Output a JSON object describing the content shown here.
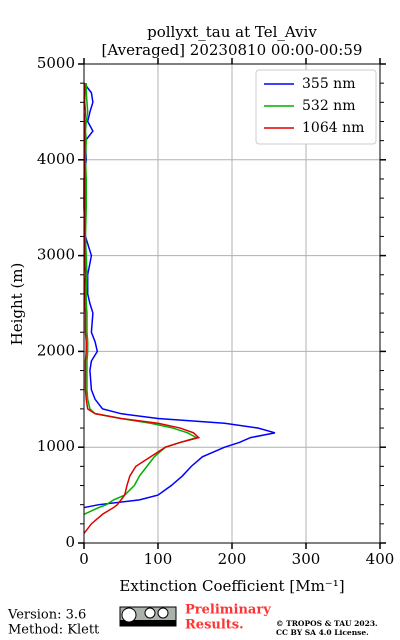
{
  "chart_data": {
    "type": "line",
    "title": "pollyxt_tau at Tel_Aviv",
    "subtitle": "[Averaged] 20230810 00:00-00:59",
    "x_label": "Extinction Coefficient [Mm⁻¹]",
    "y_label": "Height (m)",
    "xlim": [
      0,
      400
    ],
    "xticks": [
      0,
      100,
      200,
      300,
      400
    ],
    "ylim": [
      0,
      5000
    ],
    "yticks": [
      0,
      1000,
      2000,
      3000,
      4000,
      5000
    ],
    "yminorticks": [
      200,
      400,
      600,
      800,
      1200,
      1400,
      1600,
      1800,
      2200,
      2400,
      2600,
      2800,
      3200,
      3400,
      3600,
      3800,
      4200,
      4400,
      4600,
      4800
    ],
    "grid": true,
    "legend": "upper right",
    "y": [
      4800,
      4700,
      4600,
      4500,
      4400,
      4300,
      4200,
      4000,
      3800,
      3500,
      3200,
      3000,
      2800,
      2600,
      2500,
      2400,
      2200,
      2100,
      2000,
      1900,
      1800,
      1600,
      1500,
      1400,
      1350,
      1300,
      1250,
      1200,
      1150,
      1100,
      1050,
      1000,
      900,
      800,
      700,
      600,
      500,
      450,
      400,
      370,
      300,
      200,
      100
    ],
    "series": [
      {
        "name": "355 nm",
        "color": "#0000ff",
        "values": [
          0,
          10,
          12,
          8,
          5,
          12,
          2,
          3,
          0,
          0,
          2,
          10,
          5,
          5,
          8,
          12,
          10,
          15,
          18,
          10,
          8,
          10,
          15,
          25,
          50,
          100,
          190,
          235,
          258,
          225,
          210,
          190,
          160,
          145,
          133,
          118,
          100,
          75,
          20,
          0,
          null,
          null,
          null
        ]
      },
      {
        "name": "532 nm",
        "color": "#00b000",
        "values": [
          3,
          3,
          4,
          5,
          3,
          2,
          3,
          2,
          3,
          3,
          2,
          3,
          4,
          3,
          3,
          4,
          4,
          5,
          5,
          4,
          4,
          4,
          5,
          8,
          15,
          50,
          90,
          120,
          140,
          152,
          130,
          110,
          95,
          85,
          75,
          68,
          55,
          40,
          30,
          20,
          0,
          null,
          null
        ]
      },
      {
        "name": "1064 nm",
        "color": "#e00000",
        "values": [
          1,
          1,
          1,
          2,
          1,
          1,
          1,
          1,
          1,
          1,
          1,
          1,
          2,
          1,
          1,
          2,
          2,
          3,
          3,
          2,
          2,
          2,
          3,
          5,
          15,
          50,
          100,
          130,
          148,
          155,
          130,
          110,
          90,
          70,
          62,
          58,
          55,
          50,
          45,
          40,
          25,
          10,
          0
        ]
      }
    ]
  },
  "footer": {
    "version": "Version: 3.6",
    "method": "Method: Klett",
    "preliminary": [
      "Preliminary",
      "Results."
    ],
    "copyright": [
      "© TROPOS & TAU 2023.",
      "CC BY SA 4.0 License."
    ]
  }
}
